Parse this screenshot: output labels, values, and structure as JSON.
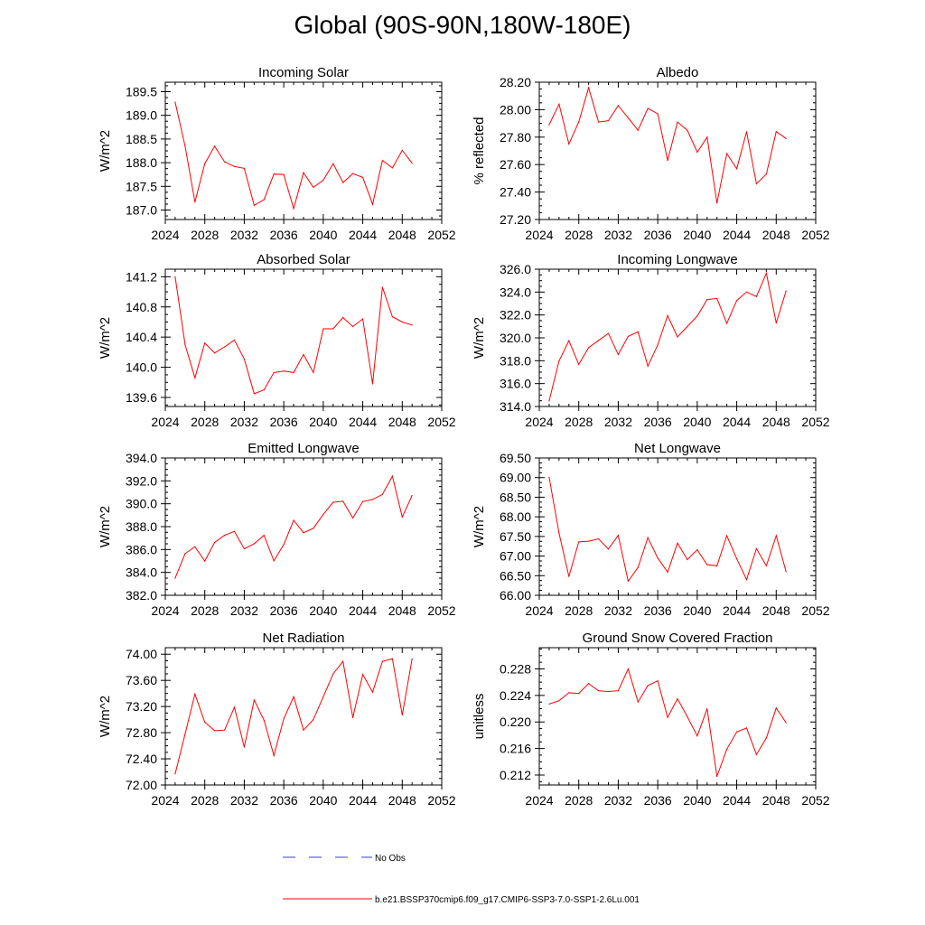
{
  "title": "Global (90S-90N,180W-180E)",
  "colors": {
    "series": "#ff0000",
    "obs": "#3a3aff",
    "axis": "#000000"
  },
  "legend": {
    "obs_label": "No Obs",
    "series_label": "b.e21.BSSP370cmip6.f09_g17.CMIP6-SSP3-7.0-SSP1-2.6Lu.001"
  },
  "chart_data": [
    {
      "type": "line",
      "title": "Incoming Solar",
      "ylabel": "W/m^2",
      "xlim": [
        2024,
        2052
      ],
      "xticks": [
        "2024",
        "2028",
        "2032",
        "2036",
        "2040",
        "2044",
        "2048",
        "2052"
      ],
      "ylim": [
        186.8,
        189.7
      ],
      "yticks": [
        "187.0",
        "187.5",
        "188.0",
        "188.5",
        "189.0",
        "189.5"
      ],
      "x": [
        2025,
        2026,
        2027,
        2028,
        2029,
        2030,
        2031,
        2032,
        2033,
        2034,
        2035,
        2036,
        2037,
        2038,
        2039,
        2040,
        2041,
        2042,
        2043,
        2044,
        2045,
        2046,
        2047,
        2048,
        2049
      ],
      "series": [
        {
          "name": "b.e21.BSSP370cmip6.f09_g17.CMIP6-SSP3-7.0-SSP1-2.6Lu.001",
          "values": [
            189.28,
            188.35,
            187.17,
            187.98,
            188.35,
            188.02,
            187.92,
            187.88,
            187.1,
            187.22,
            187.76,
            187.75,
            187.03,
            187.79,
            187.48,
            187.63,
            187.98,
            187.58,
            187.77,
            187.69,
            187.12,
            188.05,
            187.89,
            188.26,
            187.99
          ]
        }
      ]
    },
    {
      "type": "line",
      "title": "Albedo",
      "ylabel": "% reflected",
      "xlim": [
        2024,
        2052
      ],
      "xticks": [
        "2024",
        "2028",
        "2032",
        "2036",
        "2040",
        "2044",
        "2048",
        "2052"
      ],
      "ylim": [
        27.2,
        28.2
      ],
      "yticks": [
        "27.20",
        "27.40",
        "27.60",
        "27.80",
        "28.00",
        "28.20"
      ],
      "x": [
        2025,
        2026,
        2027,
        2028,
        2029,
        2030,
        2031,
        2032,
        2033,
        2034,
        2035,
        2036,
        2037,
        2038,
        2039,
        2040,
        2041,
        2042,
        2043,
        2044,
        2045,
        2046,
        2047,
        2048,
        2049
      ],
      "series": [
        {
          "name": "b.e21.BSSP370cmip6.f09_g17.CMIP6-SSP3-7.0-SSP1-2.6Lu.001",
          "values": [
            27.89,
            28.04,
            27.75,
            27.91,
            28.16,
            27.91,
            27.92,
            28.03,
            27.94,
            27.85,
            28.01,
            27.97,
            27.63,
            27.91,
            27.85,
            27.69,
            27.8,
            27.32,
            27.68,
            27.57,
            27.84,
            27.46,
            27.53,
            27.84,
            27.79
          ]
        }
      ]
    },
    {
      "type": "line",
      "title": "Absorbed Solar",
      "ylabel": "W/m^2",
      "xlim": [
        2024,
        2052
      ],
      "xticks": [
        "2024",
        "2028",
        "2032",
        "2036",
        "2040",
        "2044",
        "2048",
        "2052"
      ],
      "ylim": [
        139.48,
        141.3
      ],
      "yticks": [
        "139.6",
        "140.0",
        "140.4",
        "140.8",
        "141.2"
      ],
      "x": [
        2025,
        2026,
        2027,
        2028,
        2029,
        2030,
        2031,
        2032,
        2033,
        2034,
        2035,
        2036,
        2037,
        2038,
        2039,
        2040,
        2041,
        2042,
        2043,
        2044,
        2045,
        2046,
        2047,
        2048,
        2049
      ],
      "series": [
        {
          "name": "b.e21.BSSP370cmip6.f09_g17.CMIP6-SSP3-7.0-SSP1-2.6Lu.001",
          "values": [
            141.2,
            140.3,
            139.86,
            140.32,
            140.19,
            140.27,
            140.36,
            140.11,
            139.65,
            139.7,
            139.93,
            139.95,
            139.93,
            140.17,
            139.93,
            140.51,
            140.51,
            140.66,
            140.54,
            140.64,
            139.78,
            141.06,
            140.67,
            140.6,
            140.56
          ]
        }
      ]
    },
    {
      "type": "line",
      "title": "Incoming Longwave",
      "ylabel": "W/m^2",
      "xlim": [
        2024,
        2052
      ],
      "xticks": [
        "2024",
        "2028",
        "2032",
        "2036",
        "2040",
        "2044",
        "2048",
        "2052"
      ],
      "ylim": [
        314.0,
        326.0
      ],
      "yticks": [
        "314.0",
        "316.0",
        "318.0",
        "320.0",
        "322.0",
        "324.0",
        "326.0"
      ],
      "x": [
        2025,
        2026,
        2027,
        2028,
        2029,
        2030,
        2031,
        2032,
        2033,
        2034,
        2035,
        2036,
        2037,
        2038,
        2039,
        2040,
        2041,
        2042,
        2043,
        2044,
        2045,
        2046,
        2047,
        2048,
        2049
      ],
      "series": [
        {
          "name": "b.e21.BSSP370cmip6.f09_g17.CMIP6-SSP3-7.0-SSP1-2.6Lu.001",
          "values": [
            314.5,
            317.99,
            319.75,
            317.68,
            319.14,
            319.78,
            320.39,
            318.55,
            320.13,
            320.53,
            317.53,
            319.38,
            321.94,
            320.08,
            320.99,
            321.9,
            323.35,
            323.44,
            321.26,
            323.26,
            324.0,
            323.61,
            325.65,
            321.3,
            324.1
          ]
        }
      ]
    },
    {
      "type": "line",
      "title": "Emitted Longwave",
      "ylabel": "W/m^2",
      "xlim": [
        2024,
        2052
      ],
      "xticks": [
        "2024",
        "2028",
        "2032",
        "2036",
        "2040",
        "2044",
        "2048",
        "2052"
      ],
      "ylim": [
        382.0,
        394.0
      ],
      "yticks": [
        "382.0",
        "384.0",
        "386.0",
        "388.0",
        "390.0",
        "392.0",
        "394.0"
      ],
      "x": [
        2025,
        2026,
        2027,
        2028,
        2029,
        2030,
        2031,
        2032,
        2033,
        2034,
        2035,
        2036,
        2037,
        2038,
        2039,
        2040,
        2041,
        2042,
        2043,
        2044,
        2045,
        2046,
        2047,
        2048,
        2049
      ],
      "series": [
        {
          "name": "b.e21.BSSP370cmip6.f09_g17.CMIP6-SSP3-7.0-SSP1-2.6Lu.001",
          "values": [
            383.5,
            385.64,
            386.25,
            384.99,
            386.62,
            387.24,
            387.59,
            386.06,
            386.51,
            387.24,
            385.01,
            386.43,
            388.55,
            387.47,
            387.86,
            389.07,
            390.13,
            390.22,
            388.76,
            390.19,
            390.38,
            390.82,
            392.41,
            388.84,
            390.72
          ]
        }
      ]
    },
    {
      "type": "line",
      "title": "Net Longwave",
      "ylabel": "W/m^2",
      "xlim": [
        2024,
        2052
      ],
      "xticks": [
        "2024",
        "2028",
        "2032",
        "2036",
        "2040",
        "2044",
        "2048",
        "2052"
      ],
      "ylim": [
        66.0,
        69.5
      ],
      "yticks": [
        "66.00",
        "66.50",
        "67.00",
        "67.50",
        "68.00",
        "68.50",
        "69.00",
        "69.50"
      ],
      "x": [
        2025,
        2026,
        2027,
        2028,
        2029,
        2030,
        2031,
        2032,
        2033,
        2034,
        2035,
        2036,
        2037,
        2038,
        2039,
        2040,
        2041,
        2042,
        2043,
        2044,
        2045,
        2046,
        2047,
        2048,
        2049
      ],
      "series": [
        {
          "name": "b.e21.BSSP370cmip6.f09_g17.CMIP6-SSP3-7.0-SSP1-2.6Lu.001",
          "values": [
            69.01,
            67.58,
            66.48,
            67.36,
            67.38,
            67.44,
            67.18,
            67.53,
            66.36,
            66.71,
            67.47,
            66.95,
            66.59,
            67.33,
            66.91,
            67.16,
            66.78,
            66.75,
            67.52,
            66.93,
            66.4,
            67.19,
            66.75,
            67.52,
            66.6
          ]
        }
      ]
    },
    {
      "type": "line",
      "title": "Net Radiation",
      "ylabel": "W/m^2",
      "xlim": [
        2024,
        2052
      ],
      "xticks": [
        "2024",
        "2028",
        "2032",
        "2036",
        "2040",
        "2044",
        "2048",
        "2052"
      ],
      "ylim": [
        72.0,
        74.1
      ],
      "yticks": [
        "72.00",
        "72.40",
        "72.80",
        "73.20",
        "73.60",
        "74.00"
      ],
      "x": [
        2025,
        2026,
        2027,
        2028,
        2029,
        2030,
        2031,
        2032,
        2033,
        2034,
        2035,
        2036,
        2037,
        2038,
        2039,
        2040,
        2041,
        2042,
        2043,
        2044,
        2045,
        2046,
        2047,
        2048,
        2049
      ],
      "series": [
        {
          "name": "b.e21.BSSP370cmip6.f09_g17.CMIP6-SSP3-7.0-SSP1-2.6Lu.001",
          "values": [
            72.17,
            72.78,
            73.39,
            72.96,
            72.83,
            72.84,
            73.19,
            72.58,
            73.3,
            72.99,
            72.45,
            73.01,
            73.35,
            72.84,
            73.0,
            73.35,
            73.7,
            73.89,
            73.03,
            73.69,
            73.42,
            73.89,
            73.93,
            73.07,
            73.93
          ]
        }
      ]
    },
    {
      "type": "line",
      "title": "Ground Snow Covered Fraction",
      "ylabel": "unitless",
      "xlim": [
        2024,
        2052
      ],
      "xticks": [
        "2024",
        "2028",
        "2032",
        "2036",
        "2040",
        "2044",
        "2048",
        "2052"
      ],
      "ylim": [
        0.2105,
        0.2312
      ],
      "yticks": [
        "0.212",
        "0.216",
        "0.220",
        "0.224",
        "0.228"
      ],
      "x": [
        2025,
        2026,
        2027,
        2028,
        2029,
        2030,
        2031,
        2032,
        2033,
        2034,
        2035,
        2036,
        2037,
        2038,
        2039,
        2040,
        2041,
        2042,
        2043,
        2044,
        2045,
        2046,
        2047,
        2048,
        2049
      ],
      "series": [
        {
          "name": "b.e21.BSSP370cmip6.f09_g17.CMIP6-SSP3-7.0-SSP1-2.6Lu.001",
          "values": [
            0.2227,
            0.2232,
            0.2244,
            0.2243,
            0.2258,
            0.2247,
            0.2246,
            0.2247,
            0.228,
            0.223,
            0.2255,
            0.2262,
            0.2207,
            0.2235,
            0.2208,
            0.2179,
            0.222,
            0.2118,
            0.2159,
            0.2185,
            0.2191,
            0.2151,
            0.2176,
            0.2221,
            0.2199
          ]
        }
      ]
    }
  ]
}
